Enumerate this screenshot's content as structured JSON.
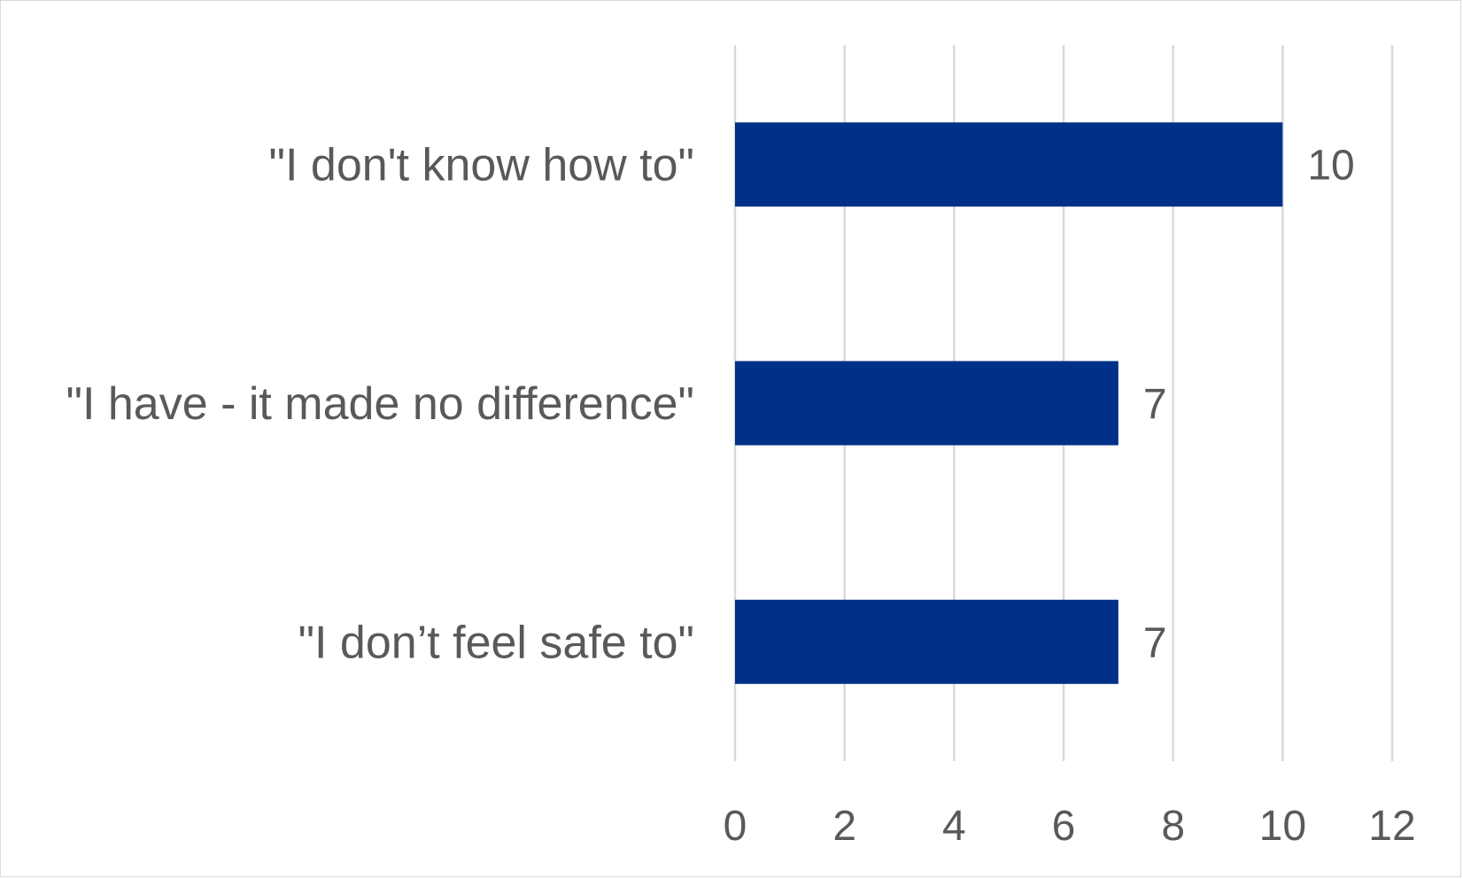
{
  "chart_data": {
    "type": "bar",
    "orientation": "horizontal",
    "categories": [
      "\"I don't know how to\"",
      "\"I have - it made no difference\"",
      "\"I don’t feel safe to\""
    ],
    "values": [
      10,
      7,
      7
    ],
    "title": "",
    "xlabel": "",
    "ylabel": "",
    "xlim": [
      0,
      12
    ],
    "xticks": [
      0,
      2,
      4,
      6,
      8,
      10,
      12
    ],
    "grid": "vertical",
    "legend": "none",
    "data_labels": true,
    "bar_color": "#003087"
  }
}
